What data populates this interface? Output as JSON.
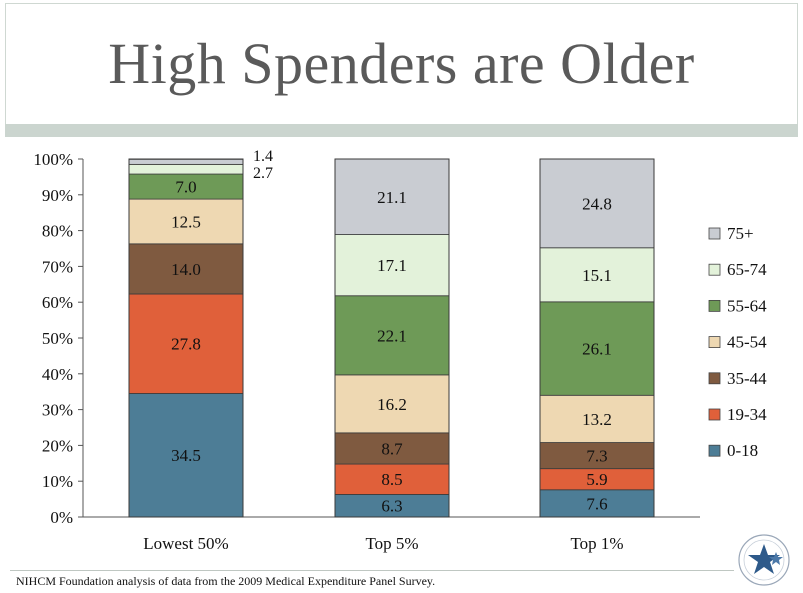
{
  "slide": {
    "title": "High Spenders are Older",
    "footnote": "NIHCM Foundation analysis of data from the 2009 Medical Expenditure Panel Survey."
  },
  "logo": {
    "icon": "nihcm-seal-icon",
    "color": "#2e5a8a"
  },
  "chart_data": {
    "type": "bar",
    "stacked": true,
    "categories": [
      "Lowest 50%",
      "Top 5%",
      "Top 1%"
    ],
    "ylim": [
      0,
      100
    ],
    "yticks": [
      "0%",
      "10%",
      "20%",
      "30%",
      "40%",
      "50%",
      "60%",
      "70%",
      "80%",
      "90%",
      "100%"
    ],
    "legend_position": "right",
    "series": [
      {
        "name": "0-18",
        "color": "#4d7d96",
        "values": [
          34.5,
          6.3,
          7.6
        ],
        "labels": [
          "34.5",
          "6.3",
          "7.6"
        ]
      },
      {
        "name": "19-34",
        "color": "#e0603a",
        "values": [
          27.8,
          8.5,
          5.9
        ],
        "labels": [
          "27.8",
          "8.5",
          "5.9"
        ]
      },
      {
        "name": "35-44",
        "color": "#7f5a40",
        "values": [
          14.0,
          8.7,
          7.3
        ],
        "labels": [
          "14.0",
          "8.7",
          "7.3"
        ]
      },
      {
        "name": "45-54",
        "color": "#eed8b2",
        "values": [
          12.5,
          16.2,
          13.2
        ],
        "labels": [
          "12.5",
          "16.2",
          "13.2"
        ]
      },
      {
        "name": "55-64",
        "color": "#6e9a57",
        "values": [
          7.0,
          22.1,
          26.1
        ],
        "labels": [
          "7.0",
          "22.1",
          "26.1"
        ]
      },
      {
        "name": "65-74",
        "color": "#e3f2da",
        "values": [
          2.7,
          17.1,
          15.1
        ],
        "labels": [
          "2.7",
          "17.1",
          "15.1"
        ]
      },
      {
        "name": "75+",
        "color": "#c9ccd2",
        "values": [
          1.4,
          21.1,
          24.8
        ],
        "labels": [
          "1.4",
          "21.1",
          "24.8"
        ]
      }
    ]
  }
}
